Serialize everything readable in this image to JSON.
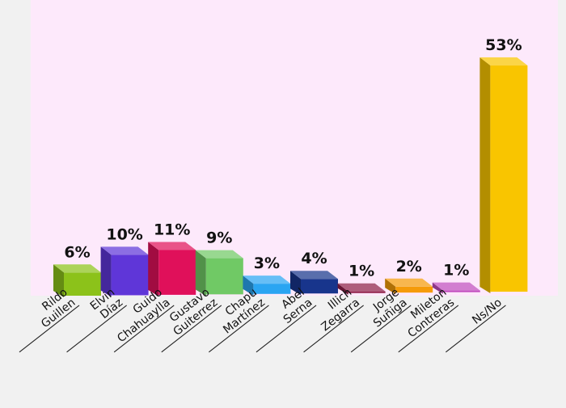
{
  "chart_data": {
    "type": "bar",
    "categories": [
      [
        "Rildo",
        "Guillen"
      ],
      [
        "Elvin",
        "Díaz"
      ],
      [
        "Guido",
        "Chahuaylla"
      ],
      [
        "Gustavo",
        "Guiterrez"
      ],
      [
        "Chapu",
        "Martínez"
      ],
      [
        "Abel",
        "Serna"
      ],
      [
        "Illich",
        "Zegarra"
      ],
      [
        "Jorge",
        "Suñiga"
      ],
      [
        "Mileton",
        "Contreras"
      ],
      [
        "Ns/No"
      ]
    ],
    "values": [
      6,
      10,
      11,
      9,
      3,
      4,
      1,
      2,
      1,
      53
    ],
    "value_labels": [
      "6%",
      "10%",
      "11%",
      "9%",
      "3%",
      "4%",
      "1%",
      "2%",
      "1%",
      "53%"
    ],
    "colors": [
      "#8cc21a",
      "#5f36d8",
      "#e0105a",
      "#70c965",
      "#2aa5f2",
      "#18358c",
      "#8f1e48",
      "#f59b09",
      "#c14cbe",
      "#f9c500"
    ],
    "plot_background": "#fde9fb",
    "page_background": "#f1f1f1",
    "three_d": true,
    "grid": false,
    "legend": "none"
  }
}
